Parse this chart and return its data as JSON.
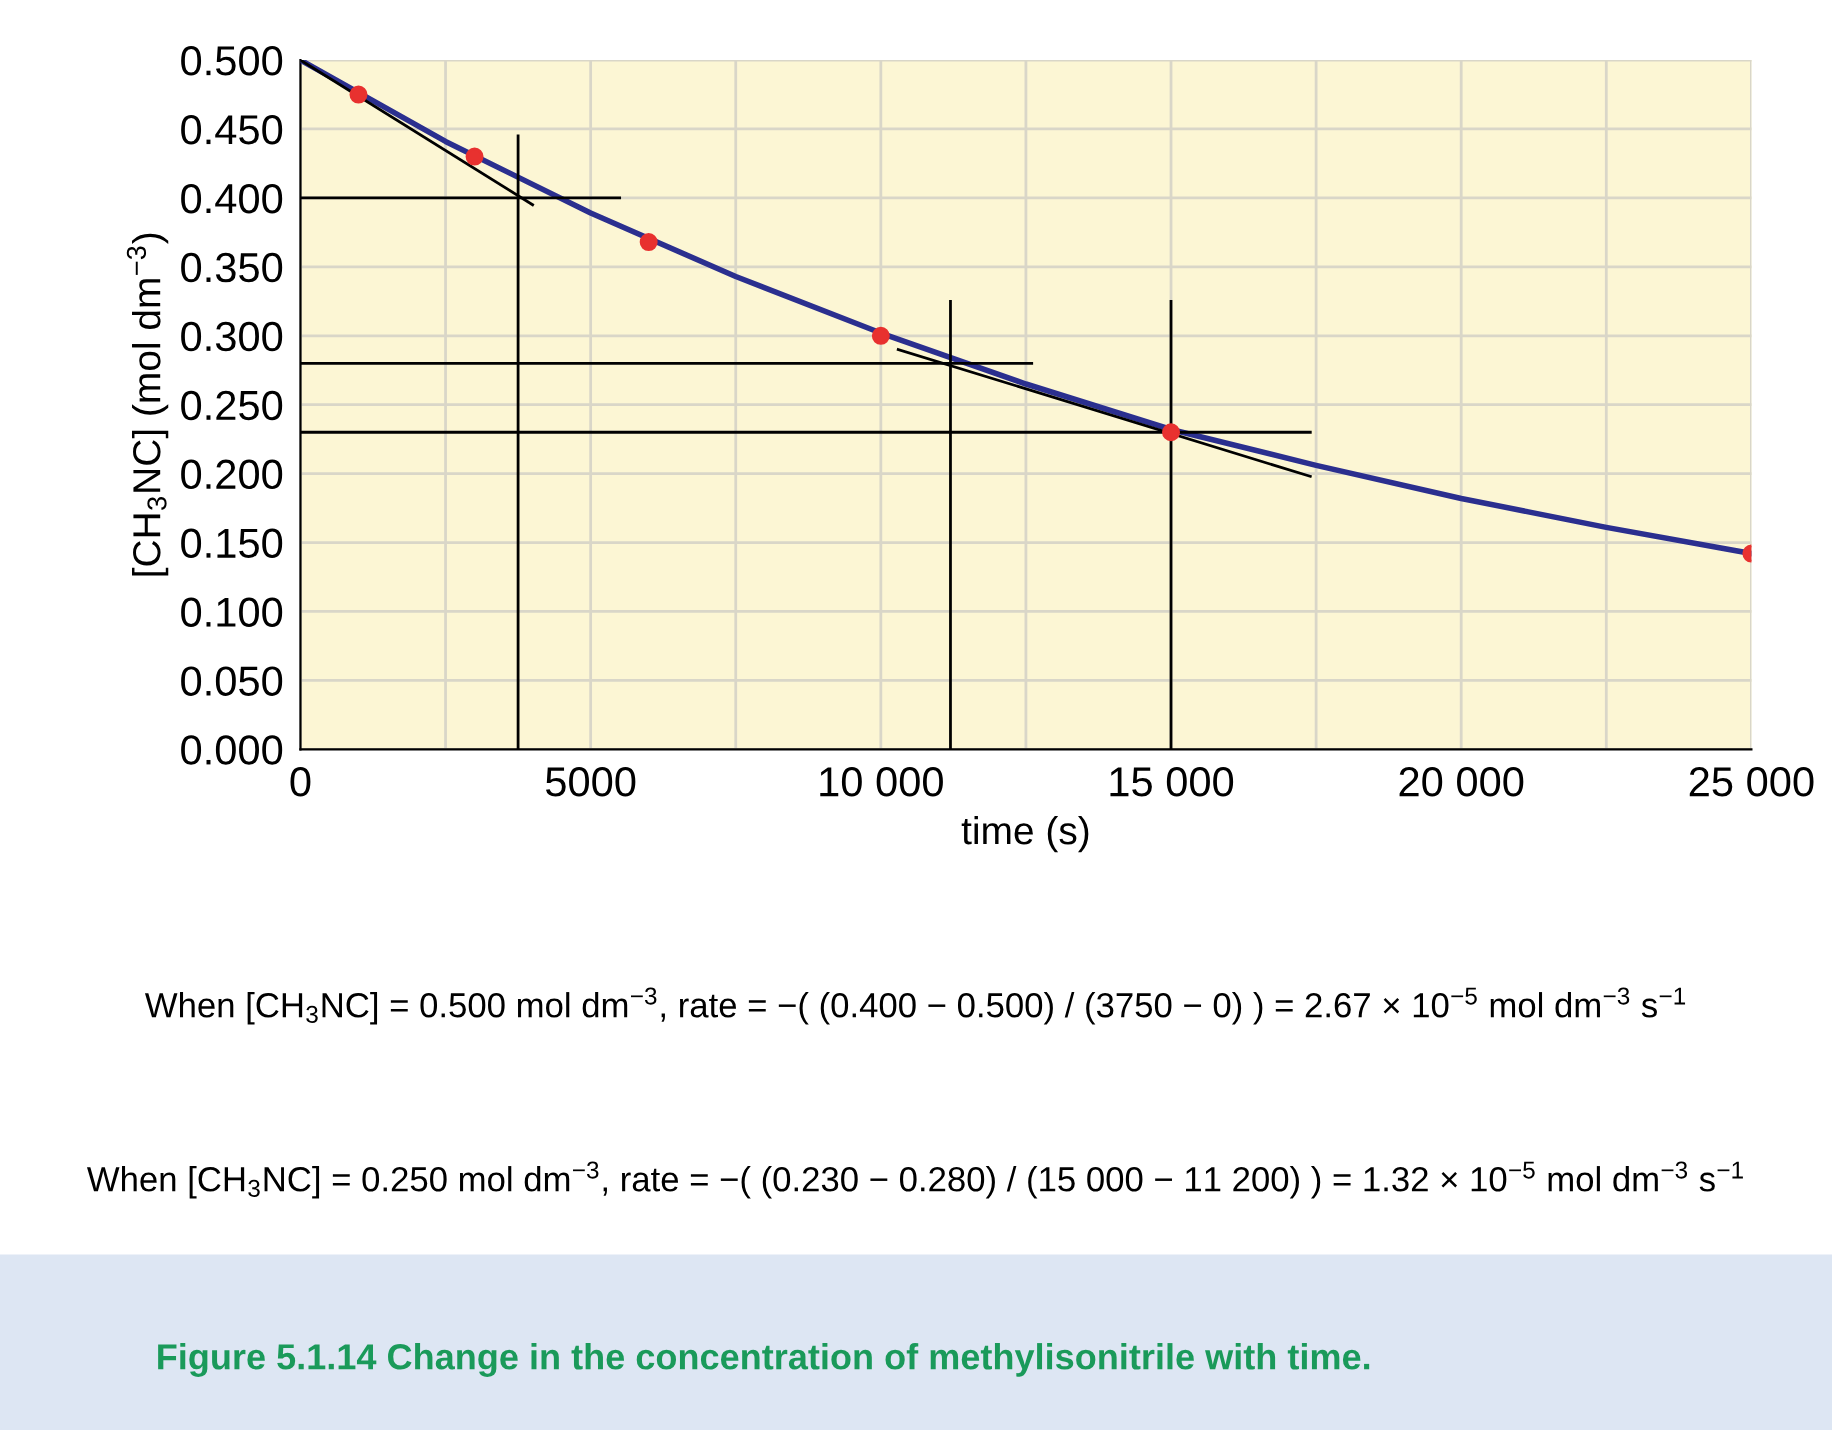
{
  "chart_data": {
    "type": "line",
    "xlabel": "time (s)",
    "ylabel": "[CH$_{3}$NC] (mol dm$^{−3}$)",
    "xlim": [
      0,
      25000
    ],
    "ylim": [
      0,
      0.5
    ],
    "xticks": [
      0,
      {
        "value": 2500,
        "label": null
      },
      5000,
      {
        "value": 7500,
        "label": null
      },
      {
        "value": 10000,
        "label": "10 000"
      },
      {
        "value": 12500,
        "label": null
      },
      {
        "value": 15000,
        "label": "15 000"
      },
      {
        "value": 17500,
        "label": null
      },
      {
        "value": 20000,
        "label": "20 000"
      },
      {
        "value": 22500,
        "label": null
      },
      {
        "value": 25000,
        "label": "25 000"
      }
    ],
    "yticks": [
      {
        "value": 0,
        "label": "0.000"
      },
      {
        "value": 0.05,
        "label": "0.050"
      },
      {
        "value": 0.1,
        "label": "0.100"
      },
      {
        "value": 0.15,
        "label": "0.150"
      },
      {
        "value": 0.2,
        "label": "0.200"
      },
      {
        "value": 0.25,
        "label": "0.250"
      },
      {
        "value": 0.3,
        "label": "0.300"
      },
      {
        "value": 0.35,
        "label": "0.350"
      },
      {
        "value": 0.4,
        "label": "0.400"
      },
      {
        "value": 0.45,
        "label": "0.450"
      },
      {
        "value": 0.5,
        "label": "0.500"
      }
    ],
    "grid": true,
    "series": [
      {
        "color": "#2b2f8f",
        "marker": "none",
        "x": [
          0,
          2500,
          5000,
          7500,
          10000,
          12500,
          15000,
          17500,
          20000,
          22500,
          25000
        ],
        "values": [
          0.5,
          0.441,
          0.389,
          0.343,
          0.302,
          0.265,
          0.232,
          0.206,
          0.182,
          0.161,
          0.142
        ]
      },
      {
        "type": "scatter",
        "color": "#e8312f",
        "marker": "circle",
        "x": [
          1000,
          3000,
          6000,
          10000,
          15000,
          25000
        ],
        "values": [
          0.475,
          0.43,
          0.368,
          0.3,
          0.23,
          0.142
        ]
      },
      {
        "color": "#000000",
        "marker": "none",
        "x": [
          0,
          4000
        ],
        "values": [
          0.5,
          0.395
        ]
      },
      {
        "color": "#000000",
        "marker": "none",
        "x": [
          10300,
          17400
        ],
        "values": [
          0.29,
          0.198
        ]
      },
      {
        "color": "#000000",
        "marker": "none",
        "x": [
          0,
          5500
        ],
        "values": [
          0.4,
          0.4
        ]
      },
      {
        "color": "#000000",
        "marker": "none",
        "x": [
          3750,
          3750
        ],
        "values": [
          0,
          0.445
        ]
      },
      {
        "color": "#000000",
        "marker": "none",
        "x": [
          0,
          12600
        ],
        "values": [
          0.28,
          0.28
        ]
      },
      {
        "color": "#000000",
        "marker": "none",
        "x": [
          11200,
          11200
        ],
        "values": [
          0,
          0.325
        ]
      },
      {
        "color": "#000000",
        "marker": "none",
        "x": [
          0,
          17400
        ],
        "values": [
          0.23,
          0.23
        ]
      },
      {
        "color": "#000000",
        "marker": "none",
        "x": [
          15000,
          15000
        ],
        "values": [
          0,
          0.325
        ]
      }
    ],
    "annotations": [
      "When [CH$_{3}$NC] = 0.500 mol dm$^{−3}$, rate = −( (0.400 − 0.500) / (3750 − 0) ) = 2.67 × 10$^{−5}$ mol dm$^{−3}$ s$^{−1}$",
      "When [CH$_{3}$NC] = 0.250 mol dm$^{−3}$, rate = −( (0.230 − 0.280) / (15 000 − 11 200) ) = 1.32 × 10$^{−5}$ mol dm$^{−3}$ s$^{−1}$",
      "Figure 5.1.14 Change in the concentration of methylisonitrile with time."
    ]
  }
}
